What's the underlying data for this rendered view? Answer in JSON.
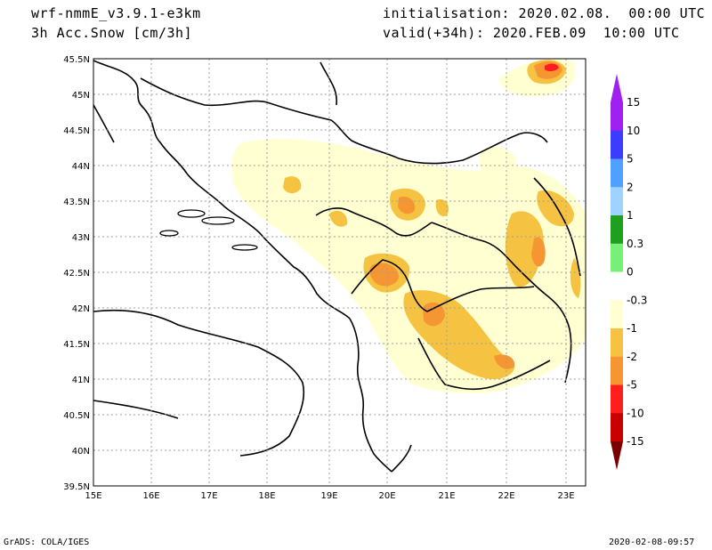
{
  "header": {
    "model": "wrf-nmmE_v3.9.1-e3km",
    "field": "3h Acc.Snow [cm/3h]",
    "init": "initialisation: 2020.02.08.  00:00 UTC",
    "valid": "valid(+34h): 2020.FEB.09  10:00 UTC"
  },
  "footer": {
    "left": "GrADS: COLA/IGES",
    "right": "2020-02-08-09:57"
  },
  "map": {
    "lon_ticks": [
      "15E",
      "16E",
      "17E",
      "18E",
      "19E",
      "20E",
      "21E",
      "22E",
      "23E"
    ],
    "lat_ticks": [
      "45.5N",
      "45N",
      "44.5N",
      "44N",
      "43.5N",
      "43N",
      "42.5N",
      "42N",
      "41.5N",
      "41N",
      "40.5N",
      "40N",
      "39.5N"
    ]
  },
  "colorbar": {
    "labels": [
      "15",
      "10",
      "5",
      "2",
      "1",
      "0.3",
      "0",
      "-0.3",
      "-1",
      "-2",
      "-5",
      "-10",
      "-15"
    ],
    "colors": [
      "#a020f0",
      "#3c3cff",
      "#50a0ff",
      "#a0d2ff",
      "#1ea01e",
      "#78f078",
      "#ffffff",
      "#ffffd2",
      "#f5c341",
      "#f59632",
      "#ff1e1e",
      "#c80000",
      "#960000"
    ],
    "top_arrow_color": "#a020f0",
    "bottom_arrow_color": "#7a0000"
  }
}
